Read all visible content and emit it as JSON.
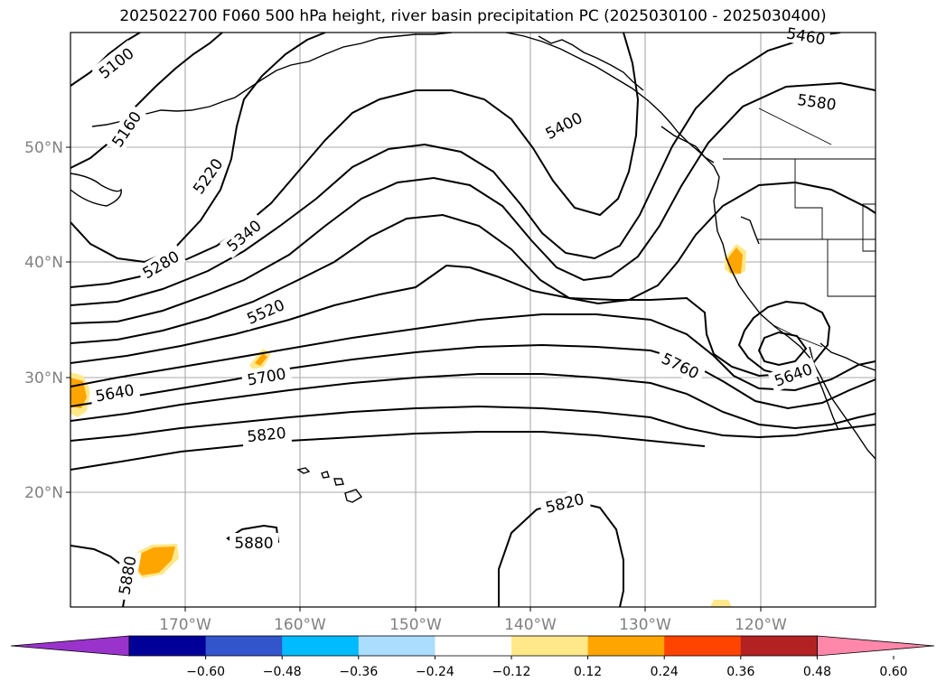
{
  "title": "2025022700 F060 500 hPa height, river basin precipitation PC (2025030100 - 2025030400)",
  "map": {
    "lon_range": [
      -180,
      -110
    ],
    "lat_range": [
      10,
      60
    ],
    "lon_ticks": [
      {
        "lon": -170,
        "label": "170°W"
      },
      {
        "lon": -160,
        "label": "160°W"
      },
      {
        "lon": -150,
        "label": "150°W"
      },
      {
        "lon": -140,
        "label": "140°W"
      },
      {
        "lon": -130,
        "label": "130°W"
      },
      {
        "lon": -120,
        "label": "120°W"
      }
    ],
    "lat_ticks": [
      {
        "lat": 20,
        "label": "20°N"
      },
      {
        "lat": 30,
        "label": "30°N"
      },
      {
        "lat": 40,
        "label": "40°N"
      },
      {
        "lat": 50,
        "label": "50°N"
      }
    ],
    "grid": true,
    "contour_labels": [
      "5100",
      "5160",
      "5220",
      "5280",
      "5340",
      "5400",
      "5460",
      "5520",
      "5580",
      "5640",
      "5640",
      "5700",
      "5760",
      "5820",
      "5820",
      "5880",
      "5880"
    ]
  },
  "colorbar": {
    "orientation": "horizontal",
    "ticks": [
      "−0.60",
      "−0.48",
      "−0.36",
      "−0.24",
      "−0.12",
      "0.12",
      "0.24",
      "0.36",
      "0.48",
      "0.60"
    ],
    "colors": [
      "#9933cc",
      "#000099",
      "#3355cc",
      "#00bbff",
      "#aaddff",
      "#ffffff",
      "#ffe88a",
      "#ffa500",
      "#ff4400",
      "#b22222",
      "#ff88aa"
    ],
    "extend": "both"
  }
}
